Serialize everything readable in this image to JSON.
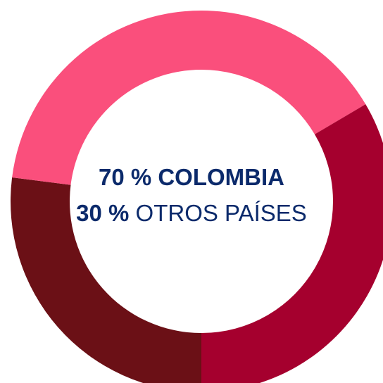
{
  "chart_data": {
    "type": "pie",
    "variant": "donut",
    "series": [
      {
        "values": [
          16.5,
          33.5,
          27,
          23
        ]
      }
    ],
    "colors": [
      "#fa4f7c",
      "#a5002e",
      "#6b1016",
      "#fa4f7c"
    ],
    "center_text": {
      "line1": "70 % COLOMBIA",
      "line2_bold": "30 %",
      "line2_rest": " OTROS PAÍSES"
    }
  }
}
